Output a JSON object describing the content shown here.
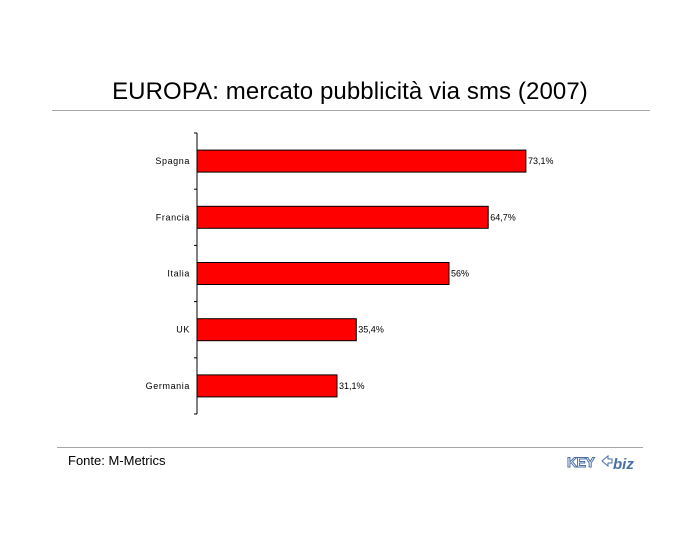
{
  "title": "EUROPA: mercato pubblicità via sms (2007)",
  "source": "Fonte: M-Metrics",
  "logo": {
    "text_left": "KEY",
    "text_right": "biz",
    "color": "#4a6fa5"
  },
  "colors": {
    "bar": "#ff0000",
    "bar_stroke": "#000000",
    "axis": "#000000",
    "rule": "#a6a6a6"
  },
  "chart_data": {
    "type": "bar",
    "orientation": "horizontal",
    "categories": [
      "Spagna",
      "Francia",
      "Italia",
      "UK",
      "Germania"
    ],
    "values": [
      73.1,
      64.7,
      56,
      35.4,
      31.1
    ],
    "data_labels": [
      "73,1%",
      "64,7%",
      "56%",
      "35,4%",
      "31,1%"
    ],
    "unit": "%",
    "xlim": [
      0,
      100
    ],
    "grid": false
  }
}
